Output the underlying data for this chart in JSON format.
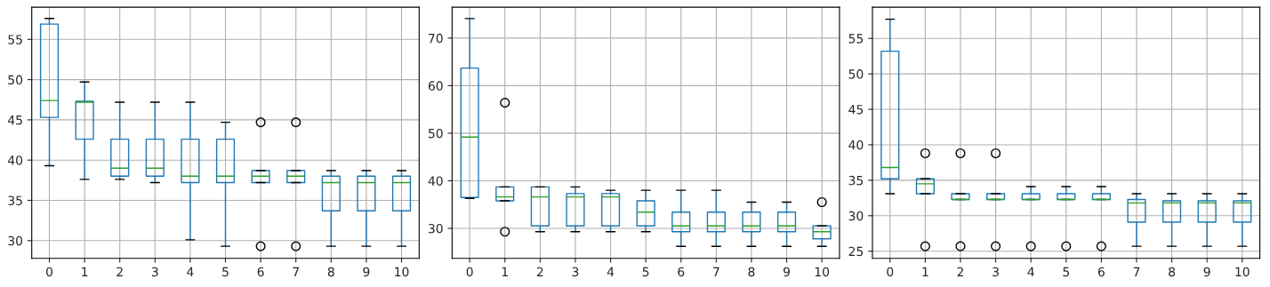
{
  "chart_data": [
    {
      "type": "box",
      "categories": [
        "0",
        "1",
        "2",
        "3",
        "4",
        "5",
        "6",
        "7",
        "8",
        "9",
        "10"
      ],
      "color": "#1f77b4",
      "ylim": [
        27.8,
        59.0
      ],
      "yticks": [
        30,
        35,
        40,
        45,
        50,
        55
      ],
      "grid": true,
      "boxes": [
        {
          "low": 39.3,
          "q1": 45.3,
          "median": 47.4,
          "q3": 56.9,
          "high": 57.6
        },
        {
          "low": 37.6,
          "q1": 42.6,
          "median": 47.2,
          "q3": 47.3,
          "high": 49.7
        },
        {
          "low": 37.6,
          "q1": 38.0,
          "median": 39.0,
          "q3": 42.6,
          "high": 47.2
        },
        {
          "low": 37.2,
          "q1": 38.0,
          "median": 39.0,
          "q3": 42.6,
          "high": 47.2
        },
        {
          "low": 30.1,
          "q1": 37.2,
          "median": 38.0,
          "q3": 42.6,
          "high": 47.2
        },
        {
          "low": 29.3,
          "q1": 37.2,
          "median": 38.0,
          "q3": 42.6,
          "high": 44.7
        },
        {
          "low": 37.2,
          "q1": 37.2,
          "median": 38.0,
          "q3": 38.7,
          "high": 38.7,
          "outliers": [
            44.7,
            29.3
          ]
        },
        {
          "low": 37.2,
          "q1": 37.2,
          "median": 38.0,
          "q3": 38.7,
          "high": 38.7,
          "outliers": [
            44.7,
            29.3
          ]
        },
        {
          "low": 29.3,
          "q1": 33.7,
          "median": 37.2,
          "q3": 38.0,
          "high": 38.7
        },
        {
          "low": 29.3,
          "q1": 33.7,
          "median": 37.2,
          "q3": 38.0,
          "high": 38.7
        },
        {
          "low": 29.3,
          "q1": 33.7,
          "median": 37.2,
          "q3": 38.0,
          "high": 38.7
        }
      ]
    },
    {
      "type": "box",
      "categories": [
        "0",
        "1",
        "2",
        "3",
        "4",
        "5",
        "6",
        "7",
        "8",
        "9",
        "10"
      ],
      "color": "#1f77b4",
      "ylim": [
        23.7,
        76.5
      ],
      "yticks": [
        30,
        40,
        50,
        60,
        70
      ],
      "grid": true,
      "boxes": [
        {
          "low": 36.3,
          "q1": 36.5,
          "median": 49.2,
          "q3": 63.7,
          "high": 74.1
        },
        {
          "low": 35.8,
          "q1": 35.8,
          "median": 36.6,
          "q3": 38.7,
          "high": 38.7,
          "outliers": [
            56.4,
            29.3
          ]
        },
        {
          "low": 29.3,
          "q1": 30.5,
          "median": 36.6,
          "q3": 38.7,
          "high": 38.7
        },
        {
          "low": 29.3,
          "q1": 30.5,
          "median": 36.6,
          "q3": 37.3,
          "high": 38.7
        },
        {
          "low": 29.3,
          "q1": 30.5,
          "median": 36.6,
          "q3": 37.3,
          "high": 38.0
        },
        {
          "low": 29.3,
          "q1": 30.5,
          "median": 33.4,
          "q3": 35.8,
          "high": 38.0
        },
        {
          "low": 26.2,
          "q1": 29.3,
          "median": 30.5,
          "q3": 33.4,
          "high": 38.0
        },
        {
          "low": 26.2,
          "q1": 29.3,
          "median": 30.5,
          "q3": 33.4,
          "high": 38.0
        },
        {
          "low": 26.2,
          "q1": 29.3,
          "median": 30.5,
          "q3": 33.4,
          "high": 35.5
        },
        {
          "low": 26.2,
          "q1": 29.3,
          "median": 30.5,
          "q3": 33.4,
          "high": 35.5
        },
        {
          "low": 26.2,
          "q1": 27.8,
          "median": 29.3,
          "q3": 30.5,
          "high": 30.5,
          "outliers": [
            35.5
          ]
        }
      ]
    },
    {
      "type": "box",
      "categories": [
        "0",
        "1",
        "2",
        "3",
        "4",
        "5",
        "6",
        "7",
        "8",
        "9",
        "10"
      ],
      "color": "#1f77b4",
      "ylim": [
        24.0,
        59.4
      ],
      "yticks": [
        25,
        30,
        35,
        40,
        45,
        50,
        55
      ],
      "grid": true,
      "boxes": [
        {
          "low": 33.1,
          "q1": 35.2,
          "median": 36.8,
          "q3": 53.2,
          "high": 57.7
        },
        {
          "low": 33.1,
          "q1": 33.1,
          "median": 34.5,
          "q3": 35.2,
          "high": 35.2,
          "outliers": [
            38.8,
            25.7
          ]
        },
        {
          "low": 32.3,
          "q1": 32.3,
          "median": 32.3,
          "q3": 33.1,
          "high": 33.1,
          "outliers": [
            38.8,
            25.7
          ]
        },
        {
          "low": 32.3,
          "q1": 32.3,
          "median": 32.3,
          "q3": 33.1,
          "high": 33.1,
          "outliers": [
            38.8,
            25.7
          ]
        },
        {
          "low": 32.3,
          "q1": 32.3,
          "median": 32.3,
          "q3": 33.1,
          "high": 34.1,
          "outliers": [
            25.7
          ]
        },
        {
          "low": 32.3,
          "q1": 32.3,
          "median": 32.3,
          "q3": 33.1,
          "high": 34.1,
          "outliers": [
            25.7
          ]
        },
        {
          "low": 32.3,
          "q1": 32.3,
          "median": 32.3,
          "q3": 33.1,
          "high": 34.1,
          "outliers": [
            25.7
          ]
        },
        {
          "low": 25.7,
          "q1": 29.1,
          "median": 31.8,
          "q3": 32.3,
          "high": 33.1
        },
        {
          "low": 25.7,
          "q1": 29.1,
          "median": 31.8,
          "q3": 32.1,
          "high": 33.1
        },
        {
          "low": 25.7,
          "q1": 29.1,
          "median": 31.8,
          "q3": 32.1,
          "high": 33.1
        },
        {
          "low": 25.7,
          "q1": 29.1,
          "median": 31.8,
          "q3": 32.1,
          "high": 33.1
        }
      ]
    }
  ]
}
